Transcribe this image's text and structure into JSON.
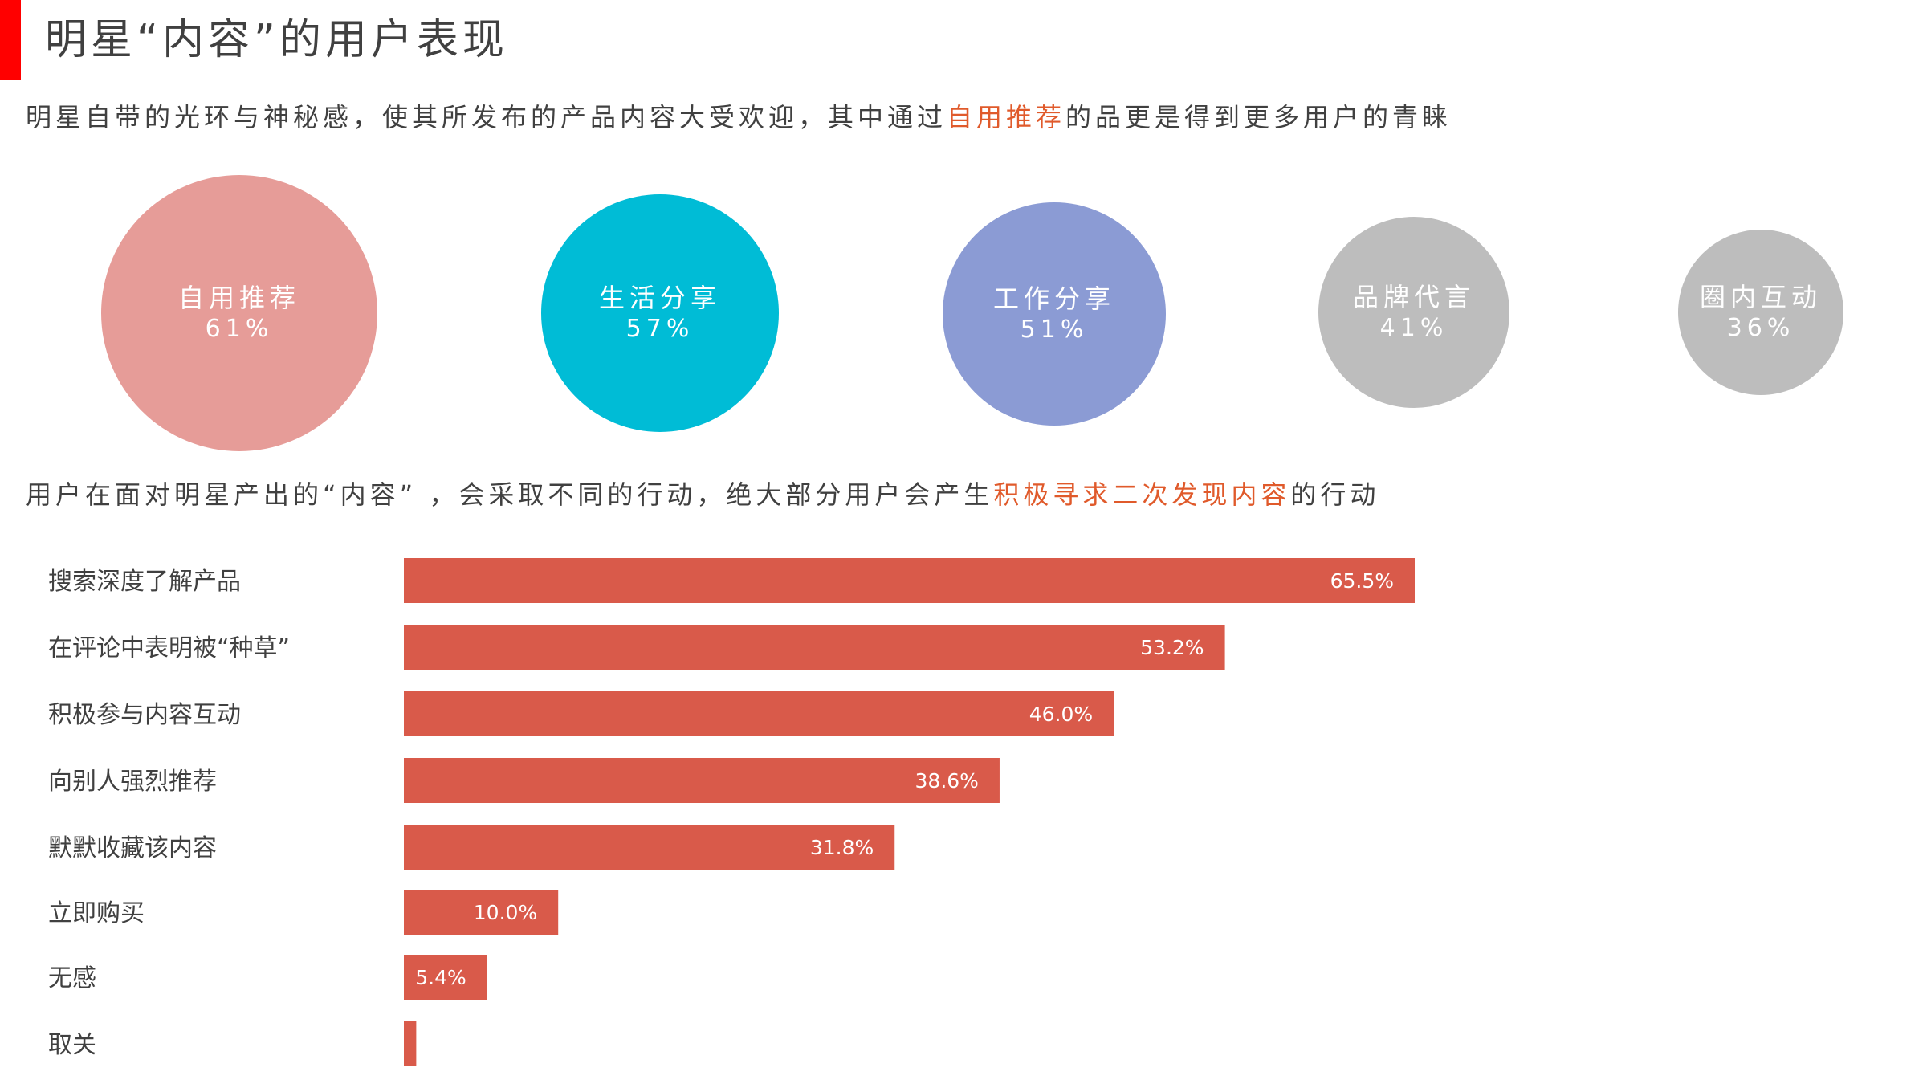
{
  "header": {
    "title": "明星“内容”的用户表现",
    "subtitle1": {
      "pre": "明星自带的光环与神秘感，使其所发布的产品内容大受欢迎，其中通过",
      "highlight": "自用推荐",
      "post": "的品更是得到更多用户的青睐"
    },
    "subtitle2": {
      "pre": "用户在面对明星产出的“内容” ，会采取不同的行动，绝大部分用户会产生",
      "highlight": "积极寻求二次发现内容",
      "post": "的行动"
    }
  },
  "colors": {
    "accent_bar": "#ff0000",
    "highlight_text": "#e05a2b",
    "bar_fill": "#d95a4a"
  },
  "chart_data": [
    {
      "type": "bubble",
      "items": [
        {
          "label": "自用推荐",
          "value": 61,
          "value_text": "61%",
          "color": "#e69c98"
        },
        {
          "label": "生活分享",
          "value": 57,
          "value_text": "57%",
          "color": "#00bcd6"
        },
        {
          "label": "工作分享",
          "value": 51,
          "value_text": "51%",
          "color": "#8b9bd4"
        },
        {
          "label": "品牌代言",
          "value": 41,
          "value_text": "41%",
          "color": "#bdbdbd"
        },
        {
          "label": "圈内互动",
          "value": 36,
          "value_text": "36%",
          "color": "#bdbdbd"
        }
      ]
    },
    {
      "type": "bar",
      "orientation": "horizontal",
      "categories": [
        "搜索深度了解产品",
        "在评论中表明被“种草”",
        "积极参与内容互动",
        "向别人强烈推荐",
        "默默收藏该内容",
        "立即购买",
        "无感",
        "取关"
      ],
      "values": [
        65.5,
        53.2,
        46.0,
        38.6,
        31.8,
        10.0,
        5.4,
        0.8
      ],
      "value_labels": [
        "65.5%",
        "53.2%",
        "46.0%",
        "38.6%",
        "31.8%",
        "10.0%",
        "5.4%",
        ""
      ],
      "color": "#d95a4a"
    }
  ]
}
